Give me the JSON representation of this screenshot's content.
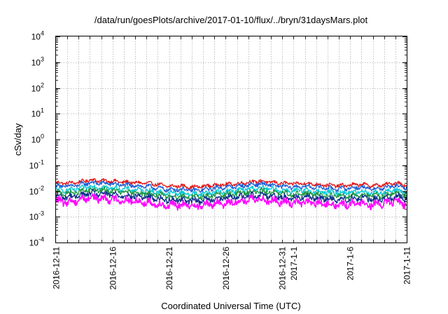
{
  "chart_data": {
    "type": "line",
    "title": "/data/run/goesPlots/archive/2017-01-10/flux/../bryn/31daysMars.plot",
    "xlabel": "Coordinated Universal Time (UTC)",
    "ylabel": "cSv/day",
    "y_scale": "log",
    "ylim": [
      0.0001,
      10000
    ],
    "xlim": [
      "2016-12-11",
      "2017-01-11"
    ],
    "y_ticks": [
      {
        "base": "10",
        "exp": "4",
        "value": 10000
      },
      {
        "base": "10",
        "exp": "3",
        "value": 1000
      },
      {
        "base": "10",
        "exp": "2",
        "value": 100
      },
      {
        "base": "10",
        "exp": "1",
        "value": 10
      },
      {
        "base": "10",
        "exp": "0",
        "value": 1
      },
      {
        "base": "10",
        "exp": "-1",
        "value": 0.1
      },
      {
        "base": "10",
        "exp": "-2",
        "value": 0.01
      },
      {
        "base": "10",
        "exp": "-3",
        "value": 0.001
      },
      {
        "base": "10",
        "exp": "-4",
        "value": 0.0001
      }
    ],
    "x_ticks": [
      {
        "label": "2016-12-11",
        "date": "2016-12-11"
      },
      {
        "label": "2016-12-16",
        "date": "2016-12-16"
      },
      {
        "label": "2016-12-21",
        "date": "2016-12-21"
      },
      {
        "label": "2016-12-26",
        "date": "2016-12-26"
      },
      {
        "label": "2016-12-31",
        "date": "2016-12-31"
      },
      {
        "label": "2017-1-1",
        "date": "2017-01-01"
      },
      {
        "label": "2017-1-6",
        "date": "2017-01-06"
      },
      {
        "label": "2017-1-11",
        "date": "2017-01-11"
      }
    ],
    "grid": true,
    "legend": "none",
    "series": [
      {
        "color": "#e31a1c",
        "points": [
          [
            "2016-12-11",
            0.021
          ],
          [
            "2016-12-12",
            0.02
          ],
          [
            "2016-12-13",
            0.022
          ],
          [
            "2016-12-14",
            0.027
          ],
          [
            "2016-12-15",
            0.025
          ],
          [
            "2016-12-16",
            0.024
          ],
          [
            "2016-12-17",
            0.022
          ],
          [
            "2016-12-18",
            0.021
          ],
          [
            "2016-12-19",
            0.02
          ],
          [
            "2016-12-20",
            0.018
          ],
          [
            "2016-12-21",
            0.015
          ],
          [
            "2016-12-22",
            0.016
          ],
          [
            "2016-12-23",
            0.014
          ],
          [
            "2016-12-24",
            0.015
          ],
          [
            "2016-12-25",
            0.017
          ],
          [
            "2016-12-26",
            0.018
          ],
          [
            "2016-12-27",
            0.019
          ],
          [
            "2016-12-28",
            0.022
          ],
          [
            "2016-12-29",
            0.024
          ],
          [
            "2016-12-30",
            0.022
          ],
          [
            "2016-12-31",
            0.02
          ],
          [
            "2017-01-01",
            0.019
          ],
          [
            "2017-01-02",
            0.02
          ],
          [
            "2017-01-03",
            0.018
          ],
          [
            "2017-01-04",
            0.017
          ],
          [
            "2017-01-05",
            0.016
          ],
          [
            "2017-01-06",
            0.017
          ],
          [
            "2017-01-07",
            0.018
          ],
          [
            "2017-01-08",
            0.016
          ],
          [
            "2017-01-09",
            0.017
          ],
          [
            "2017-01-10",
            0.021
          ],
          [
            "2017-01-11",
            0.017
          ]
        ]
      },
      {
        "color": "#1f5fd6",
        "points": [
          [
            "2016-12-11",
            0.016
          ],
          [
            "2016-12-12",
            0.015
          ],
          [
            "2016-12-13",
            0.017
          ],
          [
            "2016-12-14",
            0.021
          ],
          [
            "2016-12-15",
            0.02
          ],
          [
            "2016-12-16",
            0.019
          ],
          [
            "2016-12-17",
            0.017
          ],
          [
            "2016-12-18",
            0.016
          ],
          [
            "2016-12-19",
            0.015
          ],
          [
            "2016-12-20",
            0.013
          ],
          [
            "2016-12-21",
            0.011
          ],
          [
            "2016-12-22",
            0.012
          ],
          [
            "2016-12-23",
            0.0105
          ],
          [
            "2016-12-24",
            0.011
          ],
          [
            "2016-12-25",
            0.013
          ],
          [
            "2016-12-26",
            0.014
          ],
          [
            "2016-12-27",
            0.015
          ],
          [
            "2016-12-28",
            0.017
          ],
          [
            "2016-12-29",
            0.019
          ],
          [
            "2016-12-30",
            0.017
          ],
          [
            "2016-12-31",
            0.015
          ],
          [
            "2017-01-01",
            0.014
          ],
          [
            "2017-01-02",
            0.015
          ],
          [
            "2017-01-03",
            0.014
          ],
          [
            "2017-01-04",
            0.013
          ],
          [
            "2017-01-05",
            0.012
          ],
          [
            "2017-01-06",
            0.013
          ],
          [
            "2017-01-07",
            0.014
          ],
          [
            "2017-01-08",
            0.012
          ],
          [
            "2017-01-09",
            0.013
          ],
          [
            "2017-01-10",
            0.016
          ],
          [
            "2017-01-11",
            0.013
          ]
        ]
      },
      {
        "color": "#00c8d7",
        "points": [
          [
            "2016-12-11",
            0.011
          ],
          [
            "2016-12-12",
            0.0105
          ],
          [
            "2016-12-13",
            0.012
          ],
          [
            "2016-12-14",
            0.015
          ],
          [
            "2016-12-15",
            0.014
          ],
          [
            "2016-12-16",
            0.013
          ],
          [
            "2016-12-17",
            0.012
          ],
          [
            "2016-12-18",
            0.011
          ],
          [
            "2016-12-19",
            0.0105
          ],
          [
            "2016-12-20",
            0.009
          ],
          [
            "2016-12-21",
            0.008
          ],
          [
            "2016-12-22",
            0.0085
          ],
          [
            "2016-12-23",
            0.0075
          ],
          [
            "2016-12-24",
            0.008
          ],
          [
            "2016-12-25",
            0.009
          ],
          [
            "2016-12-26",
            0.0095
          ],
          [
            "2016-12-27",
            0.0105
          ],
          [
            "2016-12-28",
            0.012
          ],
          [
            "2016-12-29",
            0.013
          ],
          [
            "2016-12-30",
            0.012
          ],
          [
            "2016-12-31",
            0.0105
          ],
          [
            "2017-01-01",
            0.01
          ],
          [
            "2017-01-02",
            0.0105
          ],
          [
            "2017-01-03",
            0.0095
          ],
          [
            "2017-01-04",
            0.009
          ],
          [
            "2017-01-05",
            0.0085
          ],
          [
            "2017-01-06",
            0.009
          ],
          [
            "2017-01-07",
            0.0095
          ],
          [
            "2017-01-08",
            0.0085
          ],
          [
            "2017-01-09",
            0.009
          ],
          [
            "2017-01-10",
            0.011
          ],
          [
            "2017-01-11",
            0.009
          ]
        ]
      },
      {
        "color": "#1a9641",
        "points": [
          [
            "2016-12-11",
            0.0085
          ],
          [
            "2016-12-12",
            0.008
          ],
          [
            "2016-12-13",
            0.009
          ],
          [
            "2016-12-14",
            0.011
          ],
          [
            "2016-12-15",
            0.0105
          ],
          [
            "2016-12-16",
            0.01
          ],
          [
            "2016-12-17",
            0.009
          ],
          [
            "2016-12-18",
            0.0085
          ],
          [
            "2016-12-19",
            0.008
          ],
          [
            "2016-12-20",
            0.007
          ],
          [
            "2016-12-21",
            0.006
          ],
          [
            "2016-12-22",
            0.0065
          ],
          [
            "2016-12-23",
            0.0058
          ],
          [
            "2016-12-24",
            0.006
          ],
          [
            "2016-12-25",
            0.007
          ],
          [
            "2016-12-26",
            0.0072
          ],
          [
            "2016-12-27",
            0.008
          ],
          [
            "2016-12-28",
            0.009
          ],
          [
            "2016-12-29",
            0.0098
          ],
          [
            "2016-12-30",
            0.009
          ],
          [
            "2016-12-31",
            0.008
          ],
          [
            "2017-01-01",
            0.0075
          ],
          [
            "2017-01-02",
            0.008
          ],
          [
            "2017-01-03",
            0.0072
          ],
          [
            "2017-01-04",
            0.0068
          ],
          [
            "2017-01-05",
            0.0064
          ],
          [
            "2017-01-06",
            0.0068
          ],
          [
            "2017-01-07",
            0.0072
          ],
          [
            "2017-01-08",
            0.0064
          ],
          [
            "2017-01-09",
            0.0068
          ],
          [
            "2017-01-10",
            0.0085
          ],
          [
            "2017-01-11",
            0.0068
          ]
        ]
      },
      {
        "color": "#0b2f8a",
        "points": [
          [
            "2016-12-11",
            0.0062
          ],
          [
            "2016-12-12",
            0.0058
          ],
          [
            "2016-12-13",
            0.0066
          ],
          [
            "2016-12-14",
            0.008
          ],
          [
            "2016-12-15",
            0.0076
          ],
          [
            "2016-12-16",
            0.0072
          ],
          [
            "2016-12-17",
            0.0066
          ],
          [
            "2016-12-18",
            0.0062
          ],
          [
            "2016-12-19",
            0.0058
          ],
          [
            "2016-12-20",
            0.005
          ],
          [
            "2016-12-21",
            0.0044
          ],
          [
            "2016-12-22",
            0.0047
          ],
          [
            "2016-12-23",
            0.0042
          ],
          [
            "2016-12-24",
            0.0044
          ],
          [
            "2016-12-25",
            0.005
          ],
          [
            "2016-12-26",
            0.0053
          ],
          [
            "2016-12-27",
            0.0058
          ],
          [
            "2016-12-28",
            0.0066
          ],
          [
            "2016-12-29",
            0.0072
          ],
          [
            "2016-12-30",
            0.0066
          ],
          [
            "2016-12-31",
            0.0058
          ],
          [
            "2017-01-01",
            0.0055
          ],
          [
            "2017-01-02",
            0.0058
          ],
          [
            "2017-01-03",
            0.0053
          ],
          [
            "2017-01-04",
            0.005
          ],
          [
            "2017-01-05",
            0.0047
          ],
          [
            "2017-01-06",
            0.005
          ],
          [
            "2017-01-07",
            0.0053
          ],
          [
            "2017-01-08",
            0.0047
          ],
          [
            "2017-01-09",
            0.005
          ],
          [
            "2017-01-10",
            0.0062
          ],
          [
            "2017-01-11",
            0.005
          ]
        ]
      },
      {
        "color": "#ff00ff",
        "points": [
          [
            "2016-12-11",
            0.0042
          ],
          [
            "2016-12-12",
            0.0036
          ],
          [
            "2016-12-13",
            0.0045
          ],
          [
            "2016-12-14",
            0.0056
          ],
          [
            "2016-12-15",
            0.0052
          ],
          [
            "2016-12-16",
            0.0048
          ],
          [
            "2016-12-17",
            0.0043
          ],
          [
            "2016-12-18",
            0.004
          ],
          [
            "2016-12-19",
            0.0036
          ],
          [
            "2016-12-20",
            0.0031
          ],
          [
            "2016-12-21",
            0.0027
          ],
          [
            "2016-12-22",
            0.0029
          ],
          [
            "2016-12-23",
            0.0026
          ],
          [
            "2016-12-24",
            0.0028
          ],
          [
            "2016-12-25",
            0.0032
          ],
          [
            "2016-12-26",
            0.0034
          ],
          [
            "2016-12-27",
            0.0038
          ],
          [
            "2016-12-28",
            0.0044
          ],
          [
            "2016-12-29",
            0.0048
          ],
          [
            "2016-12-30",
            0.0044
          ],
          [
            "2016-12-31",
            0.0037
          ],
          [
            "2017-01-01",
            0.0035
          ],
          [
            "2017-01-02",
            0.0037
          ],
          [
            "2017-01-03",
            0.0033
          ],
          [
            "2017-01-04",
            0.0031
          ],
          [
            "2017-01-05",
            0.0029
          ],
          [
            "2017-01-06",
            0.0031
          ],
          [
            "2017-01-07",
            0.0034
          ],
          [
            "2017-01-08",
            0.0029
          ],
          [
            "2017-01-09",
            0.0032
          ],
          [
            "2017-01-10",
            0.0042
          ],
          [
            "2017-01-11",
            0.003
          ]
        ]
      }
    ]
  }
}
